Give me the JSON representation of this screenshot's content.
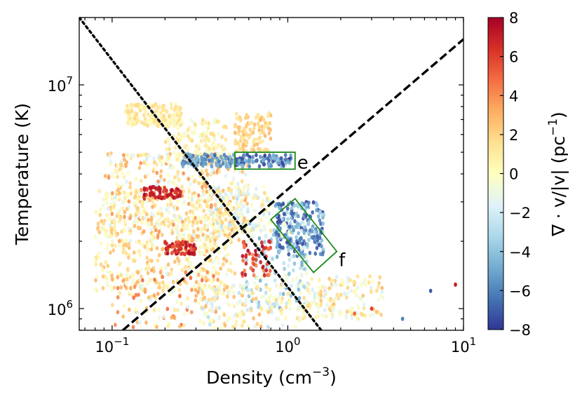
{
  "chart_data": {
    "type": "scatter",
    "xlabel": "Density (cm",
    "xlabel_exp": "−3",
    "xlabel_close": ")",
    "ylabel": "Temperature (K)",
    "xscale": "log",
    "yscale": "log",
    "xlim": [
      0.065,
      10
    ],
    "ylim": [
      800000,
      20000000
    ],
    "x_ticks": [
      {
        "value": 0.1,
        "base": "10",
        "exp": "−1"
      },
      {
        "value": 1,
        "base": "10",
        "exp": "0"
      },
      {
        "value": 10,
        "base": "10",
        "exp": "1"
      }
    ],
    "y_ticks": [
      {
        "value": 1000000,
        "base": "10",
        "exp": "6"
      },
      {
        "value": 10000000,
        "base": "10",
        "exp": "7"
      }
    ],
    "colorbar": {
      "label_main": "∇ · v/|v| (pc",
      "label_exp": "−1",
      "label_close": ")",
      "range": [
        -8,
        8
      ],
      "ticks": [
        "8",
        "6",
        "4",
        "2",
        "0",
        "−2",
        "−4",
        "−6",
        "−8"
      ],
      "colormap": [
        "#313695",
        "#4575b4",
        "#74add1",
        "#abd9e9",
        "#e0f3f8",
        "#ffffbf",
        "#fee090",
        "#fdae61",
        "#f46d43",
        "#d73027",
        "#a50026"
      ]
    },
    "reference_lines": [
      {
        "style": "dotted",
        "points": [
          [
            0.065,
            20000000
          ],
          [
            1.55,
            800000
          ]
        ]
      },
      {
        "style": "dashed",
        "points": [
          [
            0.115,
            800000
          ],
          [
            10,
            16000000
          ]
        ]
      }
    ],
    "annotations": [
      {
        "label": "e",
        "x": 1.13,
        "y": 4500000,
        "color": "#1a8a1a"
      },
      {
        "label": "f",
        "x": 1.95,
        "y": 1650000,
        "color": "#1a8a1a"
      }
    ],
    "regions": [
      {
        "label": "e",
        "type": "rectangle",
        "x_range": [
          0.5,
          1.1
        ],
        "y_range": [
          4200000,
          5000000
        ]
      },
      {
        "label": "f",
        "type": "rotated-rectangle",
        "corners": [
          [
            0.8,
            2500000
          ],
          [
            1.1,
            3100000
          ],
          [
            1.9,
            1800000
          ],
          [
            1.4,
            1450000
          ]
        ]
      }
    ],
    "clusters": [
      {
        "xr": [
          0.08,
          0.5
        ],
        "yr": [
          1200000,
          3500000
        ],
        "n": 520,
        "cr": [
          -1,
          3
        ]
      },
      {
        "xr": [
          0.09,
          0.6
        ],
        "yr": [
          2000000,
          5000000
        ],
        "n": 480,
        "cr": [
          -2,
          4
        ]
      },
      {
        "xr": [
          0.12,
          0.25
        ],
        "yr": [
          6500000,
          8200000
        ],
        "n": 170,
        "cr": [
          0,
          2
        ]
      },
      {
        "xr": [
          0.2,
          0.45
        ],
        "yr": [
          4500000,
          7000000
        ],
        "n": 160,
        "cr": [
          -1,
          2
        ]
      },
      {
        "xr": [
          0.5,
          0.8
        ],
        "yr": [
          5000000,
          7500000
        ],
        "n": 110,
        "cr": [
          1,
          3
        ]
      },
      {
        "xr": [
          0.15,
          0.25
        ],
        "yr": [
          3100000,
          3500000
        ],
        "n": 60,
        "cr": [
          6,
          8
        ]
      },
      {
        "xr": [
          0.2,
          0.3
        ],
        "yr": [
          1750000,
          2000000
        ],
        "n": 70,
        "cr": [
          5,
          8
        ]
      },
      {
        "xr": [
          0.25,
          0.5
        ],
        "yr": [
          4300000,
          4900000
        ],
        "n": 90,
        "cr": [
          -7,
          -4
        ]
      },
      {
        "xr": [
          0.5,
          1.05
        ],
        "yr": [
          4300000,
          4900000
        ],
        "n": 90,
        "cr": [
          -8,
          -4
        ]
      },
      {
        "xr": [
          0.85,
          1.6
        ],
        "yr": [
          1700000,
          3000000
        ],
        "n": 230,
        "cr": [
          -8,
          -3
        ]
      },
      {
        "xr": [
          0.55,
          1.3
        ],
        "yr": [
          1000000,
          2500000
        ],
        "n": 150,
        "cr": [
          -5,
          0
        ]
      },
      {
        "xr": [
          1.2,
          3.5
        ],
        "yr": [
          900000,
          1400000
        ],
        "n": 170,
        "cr": [
          -2,
          3
        ]
      },
      {
        "xr": [
          0.3,
          1.2
        ],
        "yr": [
          820000,
          1300000
        ],
        "n": 170,
        "cr": [
          -3,
          3
        ]
      },
      {
        "xr": [
          0.1,
          0.4
        ],
        "yr": [
          820000,
          1500000
        ],
        "n": 130,
        "cr": [
          -2,
          5
        ]
      },
      {
        "xr": [
          0.35,
          0.8
        ],
        "yr": [
          2200000,
          3500000
        ],
        "n": 130,
        "cr": [
          -3,
          2
        ]
      },
      {
        "xr": [
          0.55,
          0.8
        ],
        "yr": [
          1400000,
          2000000
        ],
        "n": 50,
        "cr": [
          4,
          8
        ]
      }
    ],
    "outliers": [
      {
        "x": 6.5,
        "y": 1200000,
        "v": -7
      },
      {
        "x": 9.0,
        "y": 1280000,
        "v": 7
      },
      {
        "x": 4.5,
        "y": 900000,
        "v": -6
      },
      {
        "x": 3.0,
        "y": 1000000,
        "v": 6
      },
      {
        "x": 2.4,
        "y": 950000,
        "v": 5
      }
    ]
  }
}
